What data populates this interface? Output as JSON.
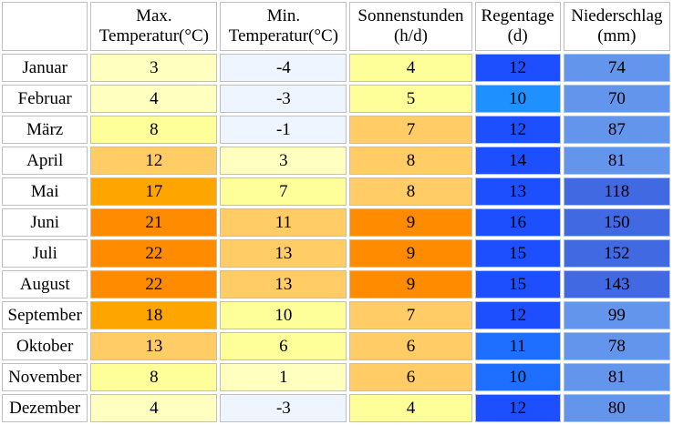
{
  "headers": [
    {
      "line1": "",
      "line2": ""
    },
    {
      "line1": "Max.",
      "line2": "Temperatur(°C)"
    },
    {
      "line1": "Min.",
      "line2": "Temperatur(°C)"
    },
    {
      "line1": "Sonnenstunden",
      "line2": "(h/d)"
    },
    {
      "line1": "Regentage",
      "line2": "(d)"
    },
    {
      "line1": "Niederschlag",
      "line2": "(mm)"
    }
  ],
  "rows": [
    {
      "month": "Januar",
      "max": "3",
      "min": "-4",
      "sun": "4",
      "rain_days": "12",
      "precip": "74"
    },
    {
      "month": "Februar",
      "max": "4",
      "min": "-3",
      "sun": "5",
      "rain_days": "10",
      "precip": "70"
    },
    {
      "month": "März",
      "max": "8",
      "min": "-1",
      "sun": "7",
      "rain_days": "12",
      "precip": "87"
    },
    {
      "month": "April",
      "max": "12",
      "min": "3",
      "sun": "8",
      "rain_days": "14",
      "precip": "81"
    },
    {
      "month": "Mai",
      "max": "17",
      "min": "7",
      "sun": "8",
      "rain_days": "13",
      "precip": "118"
    },
    {
      "month": "Juni",
      "max": "21",
      "min": "11",
      "sun": "9",
      "rain_days": "16",
      "precip": "150"
    },
    {
      "month": "Juli",
      "max": "22",
      "min": "13",
      "sun": "9",
      "rain_days": "15",
      "precip": "152"
    },
    {
      "month": "August",
      "max": "22",
      "min": "13",
      "sun": "9",
      "rain_days": "15",
      "precip": "143"
    },
    {
      "month": "September",
      "max": "18",
      "min": "10",
      "sun": "7",
      "rain_days": "12",
      "precip": "99"
    },
    {
      "month": "Oktober",
      "max": "13",
      "min": "6",
      "sun": "6",
      "rain_days": "11",
      "precip": "78"
    },
    {
      "month": "November",
      "max": "8",
      "min": "1",
      "sun": "6",
      "rain_days": "10",
      "precip": "81"
    },
    {
      "month": "Dezember",
      "max": "4",
      "min": "-3",
      "sun": "4",
      "rain_days": "12",
      "precip": "80"
    }
  ],
  "cell_colors": {
    "month": "#ffffff",
    "max": [
      "#ffffc0",
      "#ffffc0",
      "#ffff99",
      "#ffcc66",
      "#ffa500",
      "#ff8c00",
      "#ff8c00",
      "#ff8c00",
      "#ffa500",
      "#ffcc66",
      "#ffff99",
      "#ffffc0"
    ],
    "min": [
      "#eef5ff",
      "#eef5ff",
      "#eef5ff",
      "#ffffc0",
      "#ffff99",
      "#ffcc66",
      "#ffcc66",
      "#ffcc66",
      "#ffff99",
      "#ffff99",
      "#ffffc0",
      "#eef5ff"
    ],
    "sun": [
      "#ffff99",
      "#ffff99",
      "#ffcc66",
      "#ffcc66",
      "#ffcc66",
      "#ff8c00",
      "#ff8c00",
      "#ff8c00",
      "#ffcc66",
      "#ffcc66",
      "#ffcc66",
      "#ffff99"
    ],
    "rain_days": [
      "#1e4fff",
      "#1e90ff",
      "#1e4fff",
      "#1e4fff",
      "#1e4fff",
      "#1e4fff",
      "#1e4fff",
      "#1e4fff",
      "#1e4fff",
      "#1e6fff",
      "#1e6fff",
      "#1e4fff"
    ],
    "precip": [
      "#6495ed",
      "#6495ed",
      "#6495ed",
      "#6495ed",
      "#4169e1",
      "#4169e1",
      "#4169e1",
      "#4169e1",
      "#6495ed",
      "#6495ed",
      "#6495ed",
      "#6495ed"
    ]
  }
}
